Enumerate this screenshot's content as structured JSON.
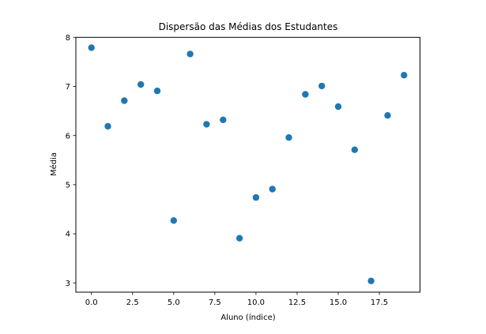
{
  "chart_data": {
    "type": "scatter",
    "title": "Dispersão das Médias dos Estudantes",
    "xlabel": "Aluno (índice)",
    "ylabel": "Média",
    "x": [
      0,
      1,
      2,
      3,
      4,
      5,
      6,
      7,
      8,
      9,
      10,
      11,
      12,
      13,
      14,
      15,
      16,
      17,
      18,
      19
    ],
    "y": [
      7.79,
      6.19,
      6.71,
      7.04,
      6.91,
      4.27,
      7.66,
      6.23,
      6.32,
      3.91,
      4.74,
      4.91,
      5.96,
      6.84,
      7.01,
      6.59,
      5.71,
      3.04,
      6.41,
      7.23
    ],
    "xlim": [
      -0.95,
      19.95
    ],
    "ylim": [
      2.81,
      8.0
    ],
    "xticks": [
      0.0,
      2.5,
      5.0,
      7.5,
      10.0,
      12.5,
      15.0,
      17.5
    ],
    "xtick_labels": [
      "0.0",
      "2.5",
      "5.0",
      "7.5",
      "10.0",
      "12.5",
      "15.0",
      "17.5"
    ],
    "yticks": [
      3,
      4,
      5,
      6,
      7,
      8
    ],
    "ytick_labels": [
      "3",
      "4",
      "5",
      "6",
      "7",
      "8"
    ],
    "grid": false,
    "legend": null,
    "marker_color": "#1f77b4"
  }
}
